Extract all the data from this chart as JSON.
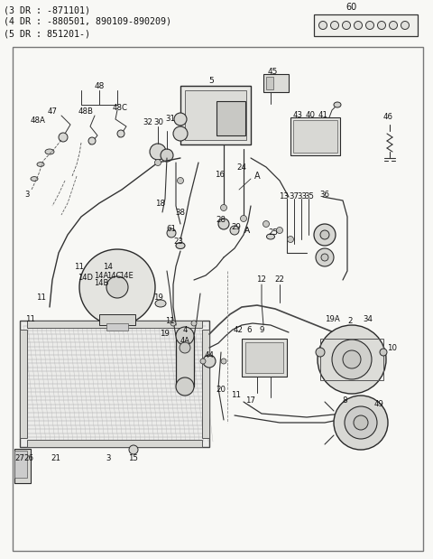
{
  "title_lines": [
    "(3 DR : -871101)",
    "(4 DR : -880501, 890109-890209)",
    "(5 DR : 851201-)"
  ],
  "bg_color": "#f5f5f0",
  "fig_width": 4.8,
  "fig_height": 6.19,
  "dpi": 100
}
